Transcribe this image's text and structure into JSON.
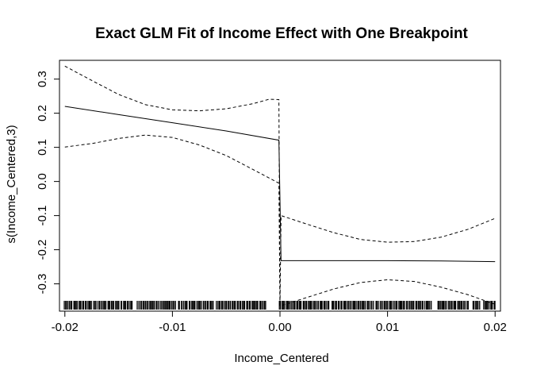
{
  "chart_data": {
    "type": "line",
    "title": "Exact GLM Fit of Income Effect with One Breakpoint",
    "xlabel": "Income_Centered",
    "ylabel": "s(Income_Centered,3)",
    "xlim": [
      -0.0205,
      0.0205
    ],
    "ylim": [
      -0.38,
      0.355
    ],
    "x_ticks": [
      -0.02,
      -0.01,
      0.0,
      0.01,
      0.02
    ],
    "x_tick_labels": [
      "-0.02",
      "-0.01",
      "0.00",
      "0.01",
      "0.02"
    ],
    "y_ticks": [
      -0.3,
      -0.2,
      -0.1,
      0.0,
      0.1,
      0.2,
      0.3
    ],
    "y_tick_labels": [
      "-0.3",
      "-0.2",
      "-0.1",
      "0.0",
      "0.1",
      "0.2",
      "0.3"
    ],
    "grid": false,
    "legend": "none",
    "breakpoint": 0.0,
    "series": [
      {
        "style": "solid",
        "x": [
          -0.02,
          -0.015,
          -0.01,
          -0.005,
          -0.0001,
          0.0001,
          0.005,
          0.01,
          0.015,
          0.02
        ],
        "y": [
          0.22,
          0.196,
          0.172,
          0.148,
          0.121,
          -0.232,
          -0.232,
          -0.232,
          -0.233,
          -0.235
        ]
      },
      {
        "style": "dashed",
        "x": [
          -0.02,
          -0.0175,
          -0.015,
          -0.0125,
          -0.01,
          -0.0075,
          -0.005,
          -0.0025,
          -0.001,
          -0.0001,
          0.0,
          0.0001,
          0.0025,
          0.005,
          0.0075,
          0.01,
          0.0125,
          0.015,
          0.0175,
          0.02
        ],
        "y": [
          0.338,
          0.296,
          0.255,
          0.225,
          0.21,
          0.207,
          0.213,
          0.228,
          0.241,
          0.24,
          -0.365,
          -0.1,
          -0.125,
          -0.15,
          -0.17,
          -0.178,
          -0.176,
          -0.163,
          -0.14,
          -0.108
        ]
      },
      {
        "style": "dashed",
        "x": [
          -0.02,
          -0.0175,
          -0.015,
          -0.0125,
          -0.01,
          -0.0075,
          -0.005,
          -0.0025,
          -0.0001,
          0.0,
          0.0025,
          0.005,
          0.0075,
          0.01,
          0.0125,
          0.015,
          0.0175,
          0.02
        ],
        "y": [
          0.101,
          0.111,
          0.126,
          0.136,
          0.129,
          0.107,
          0.076,
          0.035,
          -0.005,
          -0.365,
          -0.34,
          -0.315,
          -0.296,
          -0.288,
          -0.293,
          -0.31,
          -0.332,
          -0.36
        ]
      }
    ],
    "rug": {
      "x_min": -0.0201,
      "x_max": 0.0201,
      "count": 330,
      "gap_ranges": [
        [
          -0.0137,
          -0.0133
        ],
        [
          -0.0097,
          -0.0095
        ],
        [
          -0.0062,
          -0.006
        ],
        [
          -0.0012,
          -0.0001
        ],
        [
          0.0046,
          0.0048
        ],
        [
          0.0087,
          0.0089
        ],
        [
          0.0141,
          0.0146
        ],
        [
          0.0175,
          0.0178
        ],
        [
          0.0186,
          0.0189
        ]
      ]
    }
  }
}
